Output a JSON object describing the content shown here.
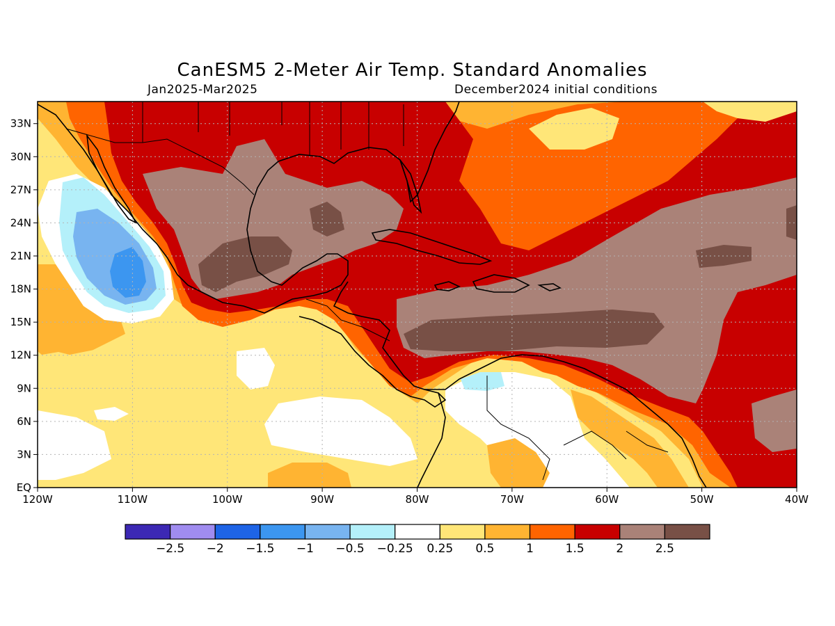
{
  "title": "CanESM5 2-Meter Air Temp. Standard Anomalies",
  "subtitle_left": "Jan2025-Mar2025",
  "subtitle_right": "December2024 initial conditions",
  "map": {
    "lon_range": [
      -120,
      -40
    ],
    "lat_range": [
      0,
      35
    ],
    "lon_ticks": [
      "120W",
      "110W",
      "100W",
      "90W",
      "80W",
      "70W",
      "60W",
      "50W",
      "40W"
    ],
    "lat_ticks": [
      "EQ",
      "3N",
      "6N",
      "9N",
      "12N",
      "15N",
      "18N",
      "21N",
      "24N",
      "27N",
      "30N",
      "33N"
    ],
    "gridlines": true
  },
  "colorbar": {
    "colors": [
      "#3c28b4",
      "#a08cf0",
      "#1e64e6",
      "#3c96f0",
      "#78b4f0",
      "#b4f0fa",
      "#ffffff",
      "#ffe678",
      "#ffb432",
      "#ff6400",
      "#c80000",
      "#aa8278",
      "#785046"
    ],
    "labels": [
      "-2.5",
      "-2",
      "-1.5",
      "-1",
      "-0.5",
      "-0.25",
      "0.25",
      "0.5",
      "1",
      "1.5",
      "2",
      "2.5"
    ]
  },
  "regions": [
    {
      "name": "gulf-mexico-cool-pool",
      "level": "-1.5",
      "note": "negative anomaly west of Baja"
    },
    {
      "name": "mexico-warm-core",
      "level": "2.5+"
    },
    {
      "name": "caribbean-warm-band",
      "level": "2.5+"
    },
    {
      "name": "north-south-america-neutral",
      "level": "0.25"
    }
  ]
}
